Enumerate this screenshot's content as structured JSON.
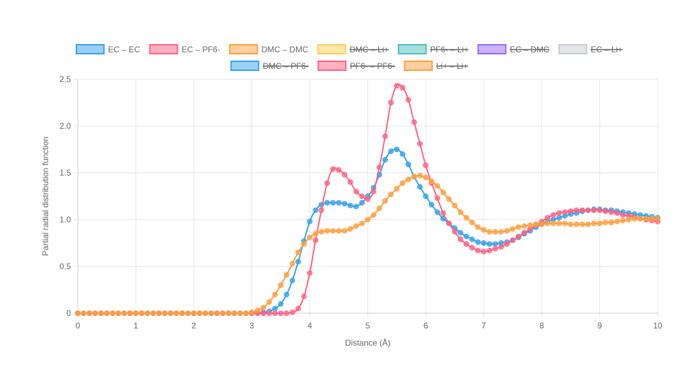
{
  "chart_data": {
    "type": "line",
    "xlabel": "Distance (Å)",
    "ylabel": "Partial radial distribution function",
    "xlim": [
      0,
      10
    ],
    "ylim": [
      0,
      2.5
    ],
    "x_ticks": [
      "0",
      "1",
      "2",
      "3",
      "4",
      "5",
      "6",
      "7",
      "8",
      "9",
      "10"
    ],
    "y_ticks": [
      "0",
      "0.5",
      "1.0",
      "1.5",
      "2.0",
      "2.5"
    ],
    "grid": true,
    "legend_position": "top",
    "series": [
      {
        "name": "EC – EC",
        "color": "#36a2eb",
        "fill": "#9ad0f5",
        "hidden": false,
        "points": [
          [
            0,
            0
          ],
          [
            3.0,
            0
          ],
          [
            3.2,
            0.01
          ],
          [
            3.3,
            0.02
          ],
          [
            3.4,
            0.05
          ],
          [
            3.5,
            0.1
          ],
          [
            3.6,
            0.2
          ],
          [
            3.7,
            0.35
          ],
          [
            3.8,
            0.55
          ],
          [
            3.9,
            0.77
          ],
          [
            4.0,
            0.98
          ],
          [
            4.1,
            1.1
          ],
          [
            4.2,
            1.16
          ],
          [
            4.3,
            1.18
          ],
          [
            4.5,
            1.18
          ],
          [
            4.6,
            1.17
          ],
          [
            4.7,
            1.15
          ],
          [
            4.8,
            1.14
          ],
          [
            4.9,
            1.18
          ],
          [
            5.0,
            1.25
          ],
          [
            5.1,
            1.34
          ],
          [
            5.2,
            1.48
          ],
          [
            5.3,
            1.64
          ],
          [
            5.4,
            1.73
          ],
          [
            5.5,
            1.75
          ],
          [
            5.6,
            1.7
          ],
          [
            5.7,
            1.59
          ],
          [
            5.8,
            1.46
          ],
          [
            5.9,
            1.35
          ],
          [
            6.0,
            1.25
          ],
          [
            6.1,
            1.16
          ],
          [
            6.2,
            1.08
          ],
          [
            6.3,
            1.01
          ],
          [
            6.4,
            0.96
          ],
          [
            6.5,
            0.91
          ],
          [
            6.6,
            0.86
          ],
          [
            6.7,
            0.82
          ],
          [
            6.8,
            0.79
          ],
          [
            6.9,
            0.76
          ],
          [
            7.0,
            0.75
          ],
          [
            7.1,
            0.74
          ],
          [
            7.2,
            0.74
          ],
          [
            7.3,
            0.75
          ],
          [
            7.4,
            0.76
          ],
          [
            7.5,
            0.78
          ],
          [
            7.6,
            0.81
          ],
          [
            7.7,
            0.85
          ],
          [
            7.8,
            0.88
          ],
          [
            7.9,
            0.92
          ],
          [
            8.0,
            0.95
          ],
          [
            8.1,
            0.98
          ],
          [
            8.2,
            1.0
          ],
          [
            8.3,
            1.02
          ],
          [
            8.4,
            1.04
          ],
          [
            8.5,
            1.06
          ],
          [
            8.6,
            1.07
          ],
          [
            8.7,
            1.09
          ],
          [
            8.8,
            1.1
          ],
          [
            8.9,
            1.11
          ],
          [
            9.0,
            1.11
          ],
          [
            9.1,
            1.1
          ],
          [
            9.2,
            1.1
          ],
          [
            9.3,
            1.09
          ],
          [
            9.4,
            1.08
          ],
          [
            9.5,
            1.07
          ],
          [
            9.6,
            1.06
          ],
          [
            9.7,
            1.05
          ],
          [
            9.8,
            1.04
          ],
          [
            9.9,
            1.03
          ],
          [
            10.0,
            1.02
          ]
        ]
      },
      {
        "name": "EC – PF6-",
        "color": "#ff6384",
        "fill": "#ffb1c1",
        "hidden": false,
        "points": [
          [
            0,
            0
          ],
          [
            3.6,
            0
          ],
          [
            3.7,
            0.01
          ],
          [
            3.8,
            0.05
          ],
          [
            3.9,
            0.18
          ],
          [
            4.0,
            0.43
          ],
          [
            4.1,
            0.78
          ],
          [
            4.2,
            1.1
          ],
          [
            4.3,
            1.39
          ],
          [
            4.4,
            1.54
          ],
          [
            4.5,
            1.53
          ],
          [
            4.6,
            1.48
          ],
          [
            4.7,
            1.4
          ],
          [
            4.8,
            1.3
          ],
          [
            4.9,
            1.25
          ],
          [
            5.0,
            1.22
          ],
          [
            5.1,
            1.3
          ],
          [
            5.2,
            1.56
          ],
          [
            5.3,
            1.89
          ],
          [
            5.4,
            2.25
          ],
          [
            5.5,
            2.43
          ],
          [
            5.6,
            2.41
          ],
          [
            5.7,
            2.28
          ],
          [
            5.8,
            2.04
          ],
          [
            5.9,
            1.81
          ],
          [
            6.0,
            1.58
          ],
          [
            6.1,
            1.39
          ],
          [
            6.2,
            1.23
          ],
          [
            6.3,
            1.07
          ],
          [
            6.4,
            0.96
          ],
          [
            6.5,
            0.87
          ],
          [
            6.6,
            0.79
          ],
          [
            6.7,
            0.74
          ],
          [
            6.8,
            0.7
          ],
          [
            6.9,
            0.67
          ],
          [
            7.0,
            0.66
          ],
          [
            7.1,
            0.67
          ],
          [
            7.2,
            0.69
          ],
          [
            7.3,
            0.71
          ],
          [
            7.4,
            0.74
          ],
          [
            7.5,
            0.78
          ],
          [
            7.6,
            0.82
          ],
          [
            7.7,
            0.86
          ],
          [
            7.8,
            0.9
          ],
          [
            7.9,
            0.94
          ],
          [
            8.0,
            0.98
          ],
          [
            8.1,
            1.02
          ],
          [
            8.2,
            1.05
          ],
          [
            8.3,
            1.07
          ],
          [
            8.4,
            1.08
          ],
          [
            8.5,
            1.09
          ],
          [
            8.6,
            1.1
          ],
          [
            8.7,
            1.1
          ],
          [
            8.8,
            1.1
          ],
          [
            8.9,
            1.1
          ],
          [
            9.0,
            1.1
          ],
          [
            9.1,
            1.09
          ],
          [
            9.2,
            1.08
          ],
          [
            9.3,
            1.07
          ],
          [
            9.4,
            1.05
          ],
          [
            9.5,
            1.04
          ],
          [
            9.6,
            1.03
          ],
          [
            9.7,
            1.01
          ],
          [
            9.8,
            1.0
          ],
          [
            9.9,
            0.99
          ],
          [
            10.0,
            0.98
          ]
        ]
      },
      {
        "name": "DMC – DMC",
        "color": "#ff9f40",
        "fill": "#ffcf9f",
        "hidden": false,
        "points": [
          [
            0,
            0
          ],
          [
            2.9,
            0
          ],
          [
            3.0,
            0.01
          ],
          [
            3.1,
            0.03
          ],
          [
            3.2,
            0.06
          ],
          [
            3.3,
            0.12
          ],
          [
            3.4,
            0.2
          ],
          [
            3.5,
            0.3
          ],
          [
            3.6,
            0.41
          ],
          [
            3.7,
            0.53
          ],
          [
            3.8,
            0.65
          ],
          [
            3.9,
            0.74
          ],
          [
            4.0,
            0.81
          ],
          [
            4.1,
            0.85
          ],
          [
            4.2,
            0.87
          ],
          [
            4.3,
            0.88
          ],
          [
            4.4,
            0.88
          ],
          [
            4.5,
            0.88
          ],
          [
            4.6,
            0.88
          ],
          [
            4.7,
            0.9
          ],
          [
            4.8,
            0.93
          ],
          [
            4.9,
            0.96
          ],
          [
            5.0,
            1.0
          ],
          [
            5.1,
            1.05
          ],
          [
            5.2,
            1.12
          ],
          [
            5.3,
            1.2
          ],
          [
            5.4,
            1.27
          ],
          [
            5.5,
            1.33
          ],
          [
            5.6,
            1.39
          ],
          [
            5.7,
            1.43
          ],
          [
            5.8,
            1.46
          ],
          [
            5.9,
            1.47
          ],
          [
            6.0,
            1.45
          ],
          [
            6.1,
            1.41
          ],
          [
            6.2,
            1.36
          ],
          [
            6.3,
            1.29
          ],
          [
            6.4,
            1.22
          ],
          [
            6.5,
            1.15
          ],
          [
            6.6,
            1.08
          ],
          [
            6.7,
            1.02
          ],
          [
            6.8,
            0.97
          ],
          [
            6.9,
            0.92
          ],
          [
            7.0,
            0.89
          ],
          [
            7.1,
            0.87
          ],
          [
            7.2,
            0.87
          ],
          [
            7.3,
            0.87
          ],
          [
            7.4,
            0.88
          ],
          [
            7.5,
            0.9
          ],
          [
            7.6,
            0.92
          ],
          [
            7.7,
            0.93
          ],
          [
            7.8,
            0.94
          ],
          [
            7.9,
            0.95
          ],
          [
            8.0,
            0.95
          ],
          [
            8.1,
            0.96
          ],
          [
            8.2,
            0.96
          ],
          [
            8.3,
            0.96
          ],
          [
            8.4,
            0.96
          ],
          [
            8.5,
            0.95
          ],
          [
            8.6,
            0.95
          ],
          [
            8.7,
            0.95
          ],
          [
            8.8,
            0.95
          ],
          [
            8.9,
            0.96
          ],
          [
            9.0,
            0.96
          ],
          [
            9.1,
            0.97
          ],
          [
            9.2,
            0.97
          ],
          [
            9.3,
            0.98
          ],
          [
            9.4,
            0.99
          ],
          [
            9.5,
            1.0
          ],
          [
            9.6,
            1.01
          ],
          [
            9.7,
            1.01
          ],
          [
            9.8,
            1.01
          ],
          [
            9.9,
            1.01
          ],
          [
            10.0,
            1.01
          ]
        ]
      },
      {
        "name": "DMC – Li+",
        "color": "#ffcd56",
        "fill": "#ffe6aa",
        "hidden": true,
        "points": []
      },
      {
        "name": "PF6- – Li+",
        "color": "#4bc0c0",
        "fill": "#a5dfdf",
        "hidden": true,
        "points": []
      },
      {
        "name": "EC – DMC",
        "color": "#9966ff",
        "fill": "#ccb2ff",
        "hidden": true,
        "points": []
      },
      {
        "name": "EC – Li+",
        "color": "#c9cbcf",
        "fill": "#e4e5e7",
        "hidden": true,
        "points": []
      },
      {
        "name": "DMC – PF6-",
        "color": "#36a2eb",
        "fill": "#9ad0f5",
        "hidden": true,
        "points": []
      },
      {
        "name": "PF6- – PF6-",
        "color": "#ff6384",
        "fill": "#ffb1c1",
        "hidden": true,
        "points": []
      },
      {
        "name": "Li+ – Li+",
        "color": "#ff9f40",
        "fill": "#ffcf9f",
        "hidden": true,
        "points": []
      }
    ]
  }
}
